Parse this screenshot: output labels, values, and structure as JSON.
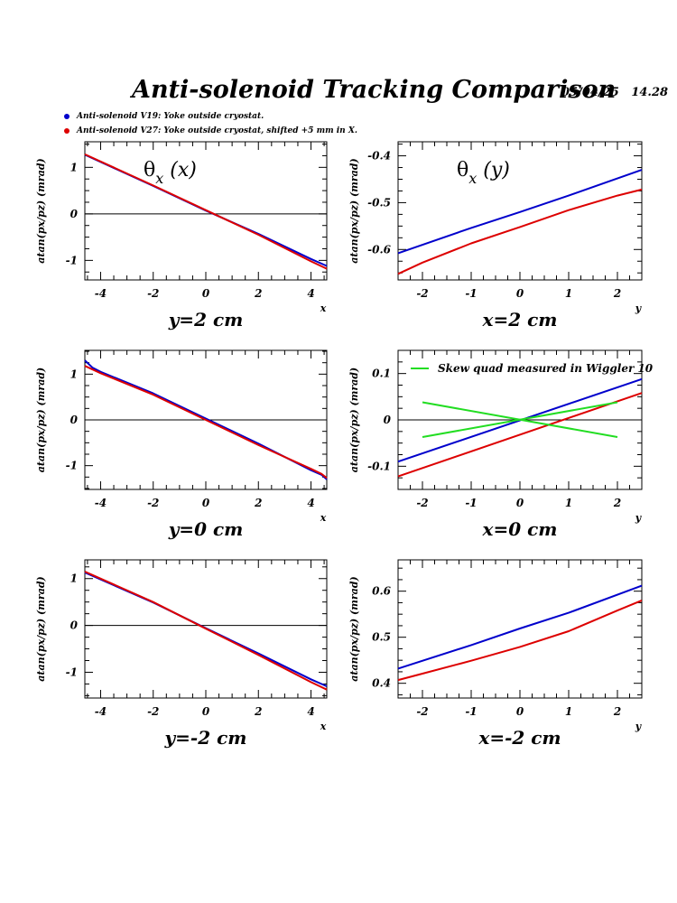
{
  "header": {
    "title": "Anti-solenoid Tracking Comparison",
    "date": "05/04/25   14.28"
  },
  "legend": [
    {
      "label": "Anti-solenoid V19: Yoke outside cryostat.",
      "color": "#0000cc"
    },
    {
      "label": "Anti-solenoid V27: Yoke outside cryostat, shifted +5 mm in X.",
      "color": "#dd0000"
    }
  ],
  "colors": {
    "blue": "#0000cc",
    "red": "#dd0000",
    "green": "#22dd22",
    "zero_line": "#000000"
  },
  "chart_data": [
    {
      "type": "line",
      "panel": "top-left",
      "annotation": "θx (x)",
      "caption": "y=2 cm",
      "xlabel": "x",
      "ylabel": "atan(px/pz) (mrad)",
      "xlim": [
        -4.6,
        4.6
      ],
      "ylim": [
        -1.42,
        1.55
      ],
      "xticks": [
        -4,
        -2,
        0,
        2,
        4
      ],
      "yticks": [
        -1,
        0,
        1
      ],
      "zero_line": true,
      "series": [
        {
          "color": "#0000cc",
          "x": [
            -4.6,
            -2,
            0,
            2,
            4,
            4.6
          ],
          "y": [
            1.27,
            0.6,
            0.07,
            -0.43,
            -0.97,
            -1.12
          ]
        },
        {
          "color": "#dd0000",
          "x": [
            -4.6,
            -2,
            0,
            2,
            4,
            4.6
          ],
          "y": [
            1.28,
            0.61,
            0.08,
            -0.45,
            -1.02,
            -1.18
          ]
        }
      ]
    },
    {
      "type": "line",
      "panel": "top-right",
      "annotation": "θx (y)",
      "caption": "x=2 cm",
      "xlabel": "y",
      "ylabel": "atan(px/pz) (mrad)",
      "xlim": [
        -2.5,
        2.5
      ],
      "ylim": [
        -0.665,
        -0.37
      ],
      "xticks": [
        -2,
        -1,
        0,
        1,
        2
      ],
      "yticks": [
        -0.6,
        -0.5,
        -0.4
      ],
      "zero_line": false,
      "series": [
        {
          "color": "#0000cc",
          "x": [
            -2.5,
            -1,
            0,
            1,
            2.5
          ],
          "y": [
            -0.608,
            -0.554,
            -0.52,
            -0.485,
            -0.43
          ]
        },
        {
          "color": "#dd0000",
          "x": [
            -2.5,
            -2,
            -1,
            0,
            1,
            2,
            2.5
          ],
          "y": [
            -0.652,
            -0.628,
            -0.587,
            -0.552,
            -0.516,
            -0.485,
            -0.472
          ]
        }
      ]
    },
    {
      "type": "line",
      "panel": "middle-left",
      "caption": "y=0 cm",
      "xlabel": "x",
      "ylabel": "atan(px/pz) (mrad)",
      "xlim": [
        -4.6,
        4.6
      ],
      "ylim": [
        -1.52,
        1.52
      ],
      "xticks": [
        -4,
        -2,
        0,
        2,
        4
      ],
      "yticks": [
        -1,
        0,
        1
      ],
      "zero_line": true,
      "series": [
        {
          "color": "#0000cc",
          "x": [
            -4.6,
            -4.3,
            -4,
            -2,
            0,
            2,
            4,
            4.4,
            4.6
          ],
          "y": [
            1.3,
            1.14,
            1.05,
            0.58,
            0.03,
            -0.52,
            -1.1,
            -1.2,
            -1.3
          ]
        },
        {
          "color": "#dd0000",
          "x": [
            -4.6,
            -4,
            -2,
            0,
            2,
            4,
            4.4,
            4.6
          ],
          "y": [
            1.18,
            1.02,
            0.55,
            0.0,
            -0.55,
            -1.07,
            -1.18,
            -1.27
          ]
        }
      ]
    },
    {
      "type": "line",
      "panel": "middle-right",
      "caption": "x=0 cm",
      "xlabel": "y",
      "ylabel": "atan(px/pz) (mrad)",
      "xlim": [
        -2.5,
        2.5
      ],
      "ylim": [
        -0.15,
        0.15
      ],
      "xticks": [
        -2,
        -1,
        0,
        1,
        2
      ],
      "yticks": [
        -0.1,
        0,
        0.1
      ],
      "zero_line": true,
      "legend_label": "Skew quad measured in Wiggler 10",
      "series": [
        {
          "color": "#0000cc",
          "x": [
            -2.5,
            2.5
          ],
          "y": [
            -0.09,
            0.088
          ]
        },
        {
          "color": "#dd0000",
          "x": [
            -2.5,
            2.5
          ],
          "y": [
            -0.122,
            0.058
          ]
        },
        {
          "color": "#22dd22",
          "name": "Skew quad measured in Wiggler 10",
          "x": [
            -2,
            2
          ],
          "y": [
            -0.037,
            0.038
          ]
        },
        {
          "color": "#22dd22",
          "x": [
            -2,
            2
          ],
          "y": [
            0.038,
            -0.037
          ]
        }
      ]
    },
    {
      "type": "line",
      "panel": "bottom-left",
      "caption": "y=-2 cm",
      "xlabel": "x",
      "ylabel": "atan(px/pz) (mrad)",
      "xlim": [
        -4.6,
        4.6
      ],
      "ylim": [
        -1.55,
        1.4
      ],
      "xticks": [
        -4,
        -2,
        0,
        2,
        4
      ],
      "yticks": [
        -1,
        0,
        1
      ],
      "zero_line": true,
      "series": [
        {
          "color": "#0000cc",
          "x": [
            -4.6,
            -2,
            0,
            2,
            4,
            4.6
          ],
          "y": [
            1.13,
            0.49,
            -0.06,
            -0.6,
            -1.15,
            -1.3
          ]
        },
        {
          "color": "#dd0000",
          "x": [
            -4.6,
            -2,
            0,
            2,
            4,
            4.6
          ],
          "y": [
            1.15,
            0.5,
            -0.07,
            -0.63,
            -1.21,
            -1.37
          ]
        }
      ]
    },
    {
      "type": "line",
      "panel": "bottom-right",
      "caption": "x=-2 cm",
      "xlabel": "y",
      "ylabel": "atan(px/pz) (mrad)",
      "xlim": [
        -2.5,
        2.5
      ],
      "ylim": [
        0.368,
        0.668
      ],
      "xticks": [
        -2,
        -1,
        0,
        1,
        2
      ],
      "yticks": [
        0.4,
        0.5,
        0.6
      ],
      "zero_line": false,
      "series": [
        {
          "color": "#0000cc",
          "x": [
            -2.5,
            -1,
            0,
            1,
            2.5
          ],
          "y": [
            0.432,
            0.483,
            0.519,
            0.553,
            0.612
          ]
        },
        {
          "color": "#dd0000",
          "x": [
            -2.5,
            -2,
            -1,
            0,
            1,
            2,
            2.5
          ],
          "y": [
            0.407,
            0.421,
            0.449,
            0.479,
            0.513,
            0.558,
            0.58
          ]
        }
      ]
    }
  ]
}
